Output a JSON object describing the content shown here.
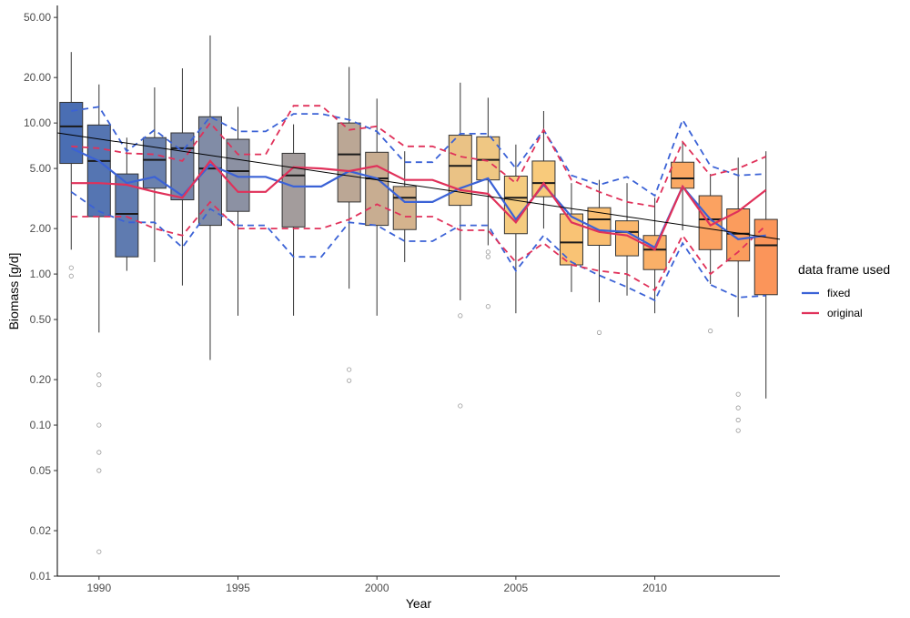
{
  "chart_data": {
    "type": "box",
    "xlabel": "Year",
    "ylabel": "Biomass [g/d]",
    "y_scale": "log10",
    "ylim": [
      0.01,
      60
    ],
    "xlim": [
      1988.5,
      2014.5
    ],
    "x_ticks": [
      1990,
      1995,
      2000,
      2005,
      2010
    ],
    "x_tick_labels": [
      "1990",
      "1995",
      "2000",
      "2005",
      "2010"
    ],
    "y_ticks": [
      0.01,
      0.02,
      0.05,
      0.1,
      0.2,
      0.5,
      1.0,
      2.0,
      5.0,
      10.0,
      20.0,
      50.0
    ],
    "y_tick_labels": [
      "0.01",
      "0.02",
      "0.05",
      "0.10",
      "0.20",
      "0.50",
      "1.00",
      "2.00",
      "5.00",
      "10.00",
      "20.00",
      "50.00"
    ],
    "grid": false,
    "legend": {
      "title": "data frame used",
      "position": "right",
      "entries": [
        {
          "label": "fixed",
          "color": "#3b62d6"
        },
        {
          "label": "original",
          "color": "#e0315a"
        }
      ]
    },
    "boxes": [
      {
        "year": 1989,
        "whisker_low": 1.45,
        "q1": 5.4,
        "median": 9.5,
        "q3": 13.7,
        "whisker_high": 29.5,
        "outliers": [
          1.1,
          0.97
        ],
        "color": "#4a6eb3"
      },
      {
        "year": 1990,
        "whisker_low": 0.41,
        "q1": 2.4,
        "median": 5.6,
        "q3": 9.7,
        "whisker_high": 18.0,
        "outliers": [
          0.215,
          0.185,
          0.1,
          0.066,
          0.05,
          0.0145
        ],
        "color": "#5575b2"
      },
      {
        "year": 1991,
        "whisker_low": 1.05,
        "q1": 1.3,
        "median": 2.5,
        "q3": 4.6,
        "whisker_high": 8.0,
        "outliers": [],
        "color": "#5f7bb0"
      },
      {
        "year": 1992,
        "whisker_low": 1.2,
        "q1": 3.7,
        "median": 5.7,
        "q3": 8.0,
        "whisker_high": 17.2,
        "outliers": [],
        "color": "#6a81ad"
      },
      {
        "year": 1993,
        "whisker_low": 0.84,
        "q1": 3.1,
        "median": 6.8,
        "q3": 8.6,
        "whisker_high": 23.0,
        "outliers": [],
        "color": "#7686aa"
      },
      {
        "year": 1994,
        "whisker_low": 0.27,
        "q1": 2.1,
        "median": 5.0,
        "q3": 11.0,
        "whisker_high": 38.0,
        "outliers": [],
        "color": "#818ca6"
      },
      {
        "year": 1995,
        "whisker_low": 0.53,
        "q1": 2.6,
        "median": 4.8,
        "q3": 7.8,
        "whisker_high": 12.8,
        "outliers": [],
        "color": "#8c91a3"
      },
      {
        "year": 1997,
        "whisker_low": 0.53,
        "q1": 2.05,
        "median": 4.5,
        "q3": 6.3,
        "whisker_high": 9.8,
        "outliers": [],
        "color": "#a39c9c"
      },
      {
        "year": 1999,
        "whisker_low": 0.8,
        "q1": 3.0,
        "median": 6.2,
        "q3": 10.0,
        "whisker_high": 23.5,
        "outliers": [
          0.233,
          0.197
        ],
        "color": "#bba795"
      },
      {
        "year": 2000,
        "whisker_low": 0.53,
        "q1": 2.1,
        "median": 4.3,
        "q3": 6.4,
        "whisker_high": 14.5,
        "outliers": [],
        "color": "#c8ad91"
      },
      {
        "year": 2001,
        "whisker_low": 1.2,
        "q1": 1.97,
        "median": 3.2,
        "q3": 3.8,
        "whisker_high": 6.5,
        "outliers": [],
        "color": "#d4b38d"
      },
      {
        "year": 2003,
        "whisker_low": 0.67,
        "q1": 2.85,
        "median": 5.2,
        "q3": 8.3,
        "whisker_high": 18.5,
        "outliers": [
          0.53,
          0.134
        ],
        "color": "#eac285"
      },
      {
        "year": 2004,
        "whisker_low": 1.55,
        "q1": 4.2,
        "median": 5.7,
        "q3": 8.1,
        "whisker_high": 14.7,
        "outliers": [
          1.4,
          1.3,
          0.61
        ],
        "color": "#efc783"
      },
      {
        "year": 2005,
        "whisker_low": 0.55,
        "q1": 1.85,
        "median": 3.2,
        "q3": 4.45,
        "whisker_high": 7.2,
        "outliers": [],
        "color": "#f5cc80"
      },
      {
        "year": 2006,
        "whisker_low": 2.0,
        "q1": 3.25,
        "median": 4.0,
        "q3": 5.6,
        "whisker_high": 12.0,
        "outliers": [],
        "color": "#f8ca7b"
      },
      {
        "year": 2007,
        "whisker_low": 0.76,
        "q1": 1.15,
        "median": 1.62,
        "q3": 2.5,
        "whisker_high": 4.0,
        "outliers": [],
        "color": "#f9c375"
      },
      {
        "year": 2008,
        "whisker_low": 0.65,
        "q1": 1.55,
        "median": 2.3,
        "q3": 2.75,
        "whisker_high": 4.2,
        "outliers": [
          0.41
        ],
        "color": "#f9bd70"
      },
      {
        "year": 2009,
        "whisker_low": 0.72,
        "q1": 1.32,
        "median": 1.9,
        "q3": 2.25,
        "whisker_high": 4.0,
        "outliers": [],
        "color": "#fab76c"
      },
      {
        "year": 2010,
        "whisker_low": 0.55,
        "q1": 1.07,
        "median": 1.45,
        "q3": 1.8,
        "whisker_high": 3.2,
        "outliers": [],
        "color": "#fab068"
      },
      {
        "year": 2011,
        "whisker_low": 1.95,
        "q1": 3.7,
        "median": 4.3,
        "q3": 5.5,
        "whisker_high": 7.5,
        "outliers": [],
        "color": "#fba964"
      },
      {
        "year": 2012,
        "whisker_low": 0.86,
        "q1": 1.45,
        "median": 2.3,
        "q3": 3.3,
        "whisker_high": 4.6,
        "outliers": [
          0.42
        ],
        "color": "#fba261"
      },
      {
        "year": 2013,
        "whisker_low": 0.52,
        "q1": 1.22,
        "median": 1.85,
        "q3": 2.7,
        "whisker_high": 5.9,
        "outliers": [
          0.16,
          0.13,
          0.108,
          0.092
        ],
        "color": "#fb9c5d"
      },
      {
        "year": 2014,
        "whisker_low": 0.15,
        "q1": 0.73,
        "median": 1.55,
        "q3": 2.3,
        "whisker_high": 6.5,
        "outliers": [],
        "color": "#fb955a"
      }
    ],
    "series": [
      {
        "name": "fixed",
        "color": "#3b62d6",
        "x": [
          1989,
          1990,
          1991,
          1992,
          1993,
          1994,
          1995,
          1996,
          1997,
          1998,
          1999,
          2000,
          2001,
          2002,
          2003,
          2004,
          2005,
          2006,
          2007,
          2008,
          2009,
          2010,
          2011,
          2012,
          2013,
          2014
        ],
        "fit": [
          6.8,
          5.6,
          4.0,
          4.4,
          3.3,
          5.3,
          4.4,
          4.4,
          3.8,
          3.8,
          4.8,
          4.3,
          3.0,
          3.0,
          3.7,
          4.3,
          2.3,
          3.9,
          2.4,
          1.95,
          1.9,
          1.5,
          3.8,
          2.3,
          1.7,
          1.8
        ],
        "upper": [
          12.0,
          12.8,
          6.5,
          9.0,
          6.5,
          11.0,
          8.8,
          8.8,
          11.5,
          11.5,
          10.5,
          8.8,
          5.5,
          5.5,
          8.5,
          8.5,
          5.0,
          9.0,
          4.5,
          3.9,
          4.4,
          3.3,
          10.5,
          5.2,
          4.5,
          4.6
        ],
        "lower": [
          3.5,
          2.6,
          2.2,
          2.2,
          1.5,
          2.7,
          2.1,
          2.1,
          1.3,
          1.3,
          2.2,
          2.1,
          1.65,
          1.65,
          2.1,
          2.1,
          1.05,
          1.8,
          1.2,
          0.98,
          0.82,
          0.67,
          1.6,
          0.85,
          0.7,
          0.72
        ]
      },
      {
        "name": "original",
        "color": "#e0315a",
        "x": [
          1989,
          1990,
          1991,
          1992,
          1993,
          1994,
          1995,
          1996,
          1997,
          1998,
          1999,
          2000,
          2001,
          2002,
          2003,
          2004,
          2005,
          2006,
          2007,
          2008,
          2009,
          2010,
          2011,
          2012,
          2013,
          2014
        ],
        "fit": [
          4.0,
          4.0,
          3.9,
          3.5,
          3.2,
          5.6,
          3.5,
          3.5,
          5.1,
          5.0,
          4.8,
          5.2,
          4.2,
          4.2,
          3.6,
          3.4,
          2.2,
          4.0,
          2.2,
          1.9,
          1.8,
          1.45,
          3.8,
          2.1,
          2.6,
          3.6
        ],
        "upper": [
          7.0,
          6.8,
          6.3,
          6.2,
          5.6,
          10.0,
          6.2,
          6.2,
          13.0,
          13.0,
          9.0,
          9.5,
          7.0,
          7.0,
          6.0,
          5.6,
          4.0,
          9.0,
          4.2,
          3.5,
          3.0,
          2.8,
          7.5,
          4.5,
          5.0,
          6.0
        ],
        "lower": [
          2.4,
          2.4,
          2.4,
          2.0,
          1.8,
          3.0,
          2.0,
          2.0,
          2.0,
          2.0,
          2.3,
          2.9,
          2.4,
          2.4,
          1.95,
          1.95,
          1.2,
          1.6,
          1.15,
          1.05,
          1.0,
          0.78,
          1.8,
          1.0,
          1.4,
          2.1
        ]
      }
    ],
    "trend_line": {
      "color": "#000000",
      "x": [
        1988.5,
        2014.5
      ],
      "y": [
        8.6,
        1.7
      ]
    }
  }
}
